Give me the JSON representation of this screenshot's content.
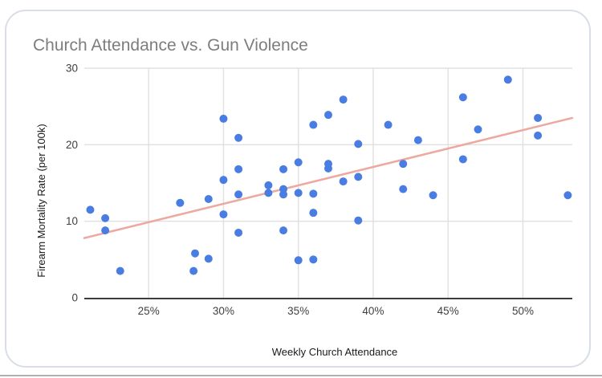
{
  "chart": {
    "title": "Church Attendance vs. Gun Violence",
    "x_axis_title": "Weekly Church Attendance",
    "y_axis_title": "Firearm Mortality Rate (per 100k)"
  },
  "chart_data": {
    "type": "scatter",
    "title": "Church Attendance vs. Gun Violence",
    "xlabel": "Weekly Church Attendance",
    "ylabel": "Firearm Mortality Rate (per 100k)",
    "x_unit": "percent",
    "xlim": [
      20.7,
      53.3
    ],
    "ylim": [
      0,
      30
    ],
    "grid": true,
    "legend_position": "none",
    "x_ticks": [
      {
        "value": 25,
        "label": "25%"
      },
      {
        "value": 30,
        "label": "30%"
      },
      {
        "value": 35,
        "label": "35%"
      },
      {
        "value": 40,
        "label": "40%"
      },
      {
        "value": 45,
        "label": "45%"
      },
      {
        "value": 50,
        "label": "50%"
      }
    ],
    "y_ticks": [
      {
        "value": 0,
        "label": "0"
      },
      {
        "value": 10,
        "label": "10"
      },
      {
        "value": 20,
        "label": "20"
      },
      {
        "value": 30,
        "label": "30"
      }
    ],
    "points": [
      [
        21.1,
        11.5
      ],
      [
        22.1,
        10.4
      ],
      [
        22.1,
        8.8
      ],
      [
        23.1,
        3.5
      ],
      [
        27.1,
        12.4
      ],
      [
        28.1,
        5.8
      ],
      [
        28.0,
        3.5
      ],
      [
        29.0,
        12.9
      ],
      [
        29.0,
        5.1
      ],
      [
        30.0,
        23.4
      ],
      [
        30.0,
        15.4
      ],
      [
        30.0,
        10.9
      ],
      [
        31.0,
        20.9
      ],
      [
        31.0,
        16.8
      ],
      [
        31.0,
        13.5
      ],
      [
        31.0,
        8.5
      ],
      [
        33.0,
        14.7
      ],
      [
        33.0,
        13.7
      ],
      [
        34.0,
        16.8
      ],
      [
        34.0,
        14.2
      ],
      [
        34.0,
        13.5
      ],
      [
        34.0,
        8.8
      ],
      [
        35.0,
        17.7
      ],
      [
        35.0,
        13.7
      ],
      [
        35.0,
        4.9
      ],
      [
        36.0,
        22.6
      ],
      [
        36.0,
        13.6
      ],
      [
        36.0,
        11.1
      ],
      [
        36.0,
        5.0
      ],
      [
        37.0,
        23.9
      ],
      [
        37.0,
        17.5
      ],
      [
        37.0,
        16.9
      ],
      [
        38.0,
        25.9
      ],
      [
        38.0,
        15.2
      ],
      [
        39.0,
        20.1
      ],
      [
        39.0,
        15.8
      ],
      [
        39.0,
        10.1
      ],
      [
        41.0,
        22.6
      ],
      [
        42.0,
        17.5
      ],
      [
        42.0,
        14.2
      ],
      [
        43.0,
        20.6
      ],
      [
        44.0,
        13.4
      ],
      [
        46.0,
        26.2
      ],
      [
        46.0,
        18.1
      ],
      [
        47.0,
        22.0
      ],
      [
        49.0,
        28.5
      ],
      [
        51.0,
        23.5
      ],
      [
        51.0,
        21.2
      ],
      [
        53.0,
        13.4
      ]
    ],
    "trendline": {
      "x1": 20.7,
      "y1": 7.8,
      "x2": 53.3,
      "y2": 23.5
    },
    "colors": {
      "marker": "#4a7de2",
      "trendline": "#eda89f",
      "gridline": "#e0e0e0",
      "axis_line": "#3d3d3d",
      "tick_label": "#3f3f3f",
      "axis_title": "#1a1a1a",
      "title": "#7d7d7d",
      "card_border": "#d9dee6"
    }
  }
}
